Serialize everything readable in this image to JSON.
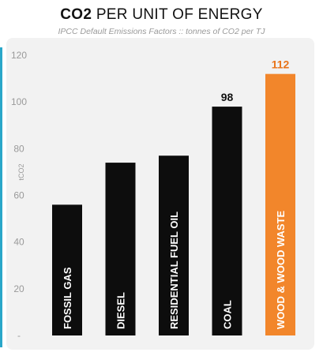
{
  "title_bold": "CO2",
  "title_rest": " PER UNIT OF ENERGY",
  "subtitle": "IPCC Default Emissions Factors :: tonnes of CO2 per TJ",
  "chart_data": {
    "type": "bar",
    "title": "CO2 PER UNIT OF ENERGY",
    "subtitle": "IPCC Default Emissions Factors :: tonnes of CO2 per TJ",
    "ylabel": "tCO2",
    "xlabel": "",
    "categories": [
      "FOSSIL GAS",
      "DIESEL",
      "RESIDENTIAL FUEL OIL",
      "COAL",
      "WOOD & WOOD WASTE"
    ],
    "values": [
      56,
      74,
      77,
      98,
      112
    ],
    "data_labels": [
      "",
      "",
      "",
      "98",
      "112"
    ],
    "ylim": [
      0,
      120
    ],
    "yticks": [
      "-",
      "20",
      "40",
      "60",
      "80",
      "100",
      "120"
    ],
    "grid": false,
    "legend": "none",
    "colors": {
      "default": "#0d0d0d",
      "highlight": "#f2862b",
      "highlight_label": "#e8741a",
      "axis_text": "#9a9a9a",
      "label_dark": "#111111"
    },
    "highlight_index": 4
  }
}
